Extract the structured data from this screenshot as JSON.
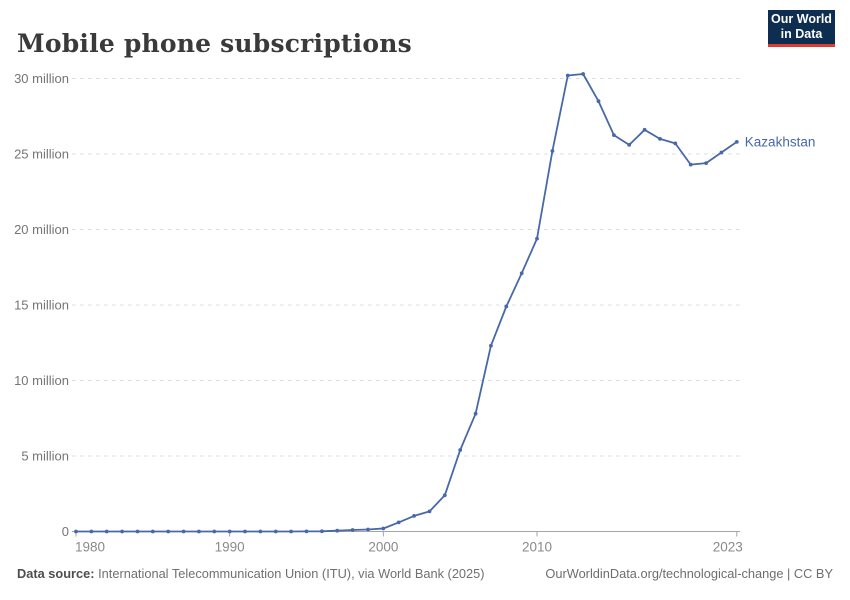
{
  "header": {
    "title": "Mobile phone subscriptions",
    "logo": {
      "line1": "Our World",
      "line2": "in Data"
    }
  },
  "chart_data": {
    "type": "line",
    "title": "Mobile phone subscriptions",
    "xlabel": "",
    "ylabel": "",
    "unit": "million subscriptions",
    "x": [
      1980,
      1981,
      1982,
      1983,
      1984,
      1985,
      1986,
      1987,
      1988,
      1989,
      1990,
      1991,
      1992,
      1993,
      1994,
      1995,
      1996,
      1997,
      1998,
      1999,
      2000,
      2001,
      2002,
      2003,
      2004,
      2005,
      2006,
      2007,
      2008,
      2009,
      2010,
      2011,
      2012,
      2013,
      2014,
      2015,
      2016,
      2017,
      2018,
      2019,
      2020,
      2021,
      2022,
      2023
    ],
    "series": [
      {
        "name": "Kazakhstan",
        "color": "#4868a8",
        "values": [
          0,
          0,
          0,
          0,
          0,
          0,
          0,
          0,
          0,
          0,
          0,
          0,
          0,
          0,
          0.001,
          0.005,
          0.011,
          0.054,
          0.1,
          0.13,
          0.2,
          0.6,
          1.03,
          1.33,
          2.4,
          5.4,
          7.8,
          12.3,
          14.9,
          17.1,
          19.4,
          25.2,
          30.2,
          30.3,
          28.5,
          26.25,
          25.6,
          26.6,
          26.0,
          25.7,
          24.3,
          24.4,
          25.1,
          25.8
        ]
      }
    ],
    "yticks": [
      {
        "value": 0,
        "label": "0"
      },
      {
        "value": 5,
        "label": "5 million"
      },
      {
        "value": 10,
        "label": "10 million"
      },
      {
        "value": 15,
        "label": "15 million"
      },
      {
        "value": 20,
        "label": "20 million"
      },
      {
        "value": 25,
        "label": "25 million"
      },
      {
        "value": 30,
        "label": "30 million"
      }
    ],
    "xticks": [
      1980,
      1990,
      2000,
      2010,
      2023
    ],
    "xlim": [
      1980,
      2023
    ],
    "ylim": [
      0,
      30.3
    ],
    "grid": true,
    "legend_position": "end-of-line"
  },
  "footer": {
    "source_label": "Data source:",
    "source_text": "International Telecommunication Union (ITU), via World Bank (2025)",
    "rights_text": "OurWorldinData.org/technological-change | CC BY"
  },
  "colors": {
    "line": "#4868a8",
    "grid": "#dcdcdc",
    "axis": "#a5a5a5",
    "y_tick_label": "#757575",
    "x_tick_label": "#8a8a8a",
    "title": "#3a3a3a"
  }
}
